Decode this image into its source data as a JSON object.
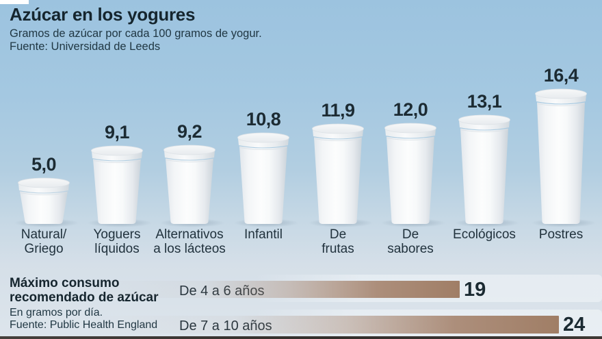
{
  "header": {
    "title": "Azúcar en los yogures",
    "subtitle": "Gramos de azúcar por cada 100 gramos de yogur.",
    "source": "Fuente: Universidad de Leeds"
  },
  "max_consumption": {
    "heading": "Máximo consumo\nrecomendado de azúcar",
    "note": "En gramos por día.",
    "source": "Fuente: Public Health England"
  },
  "colors": {
    "background_top": "#9cc3df",
    "background_bottom": "#dde5ec",
    "bar_brown": "#a6846e",
    "text_dark": "#1b2b33",
    "cup_white": "#f7f9fa"
  },
  "chart_data": [
    {
      "type": "bar",
      "style": "3d-yogurt-cups",
      "title": "Azúcar en los yogures",
      "subtitle": "Gramos de azúcar por cada 100 gramos de yogur.",
      "source": "Universidad de Leeds",
      "unit": "g de azúcar / 100 g de yogur",
      "categories": [
        "Natural/\nGriego",
        "Yoguers\nlíquidos",
        "Alternativos\na los lácteos",
        "Infantil",
        "De\nfrutas",
        "De\nsabores",
        "Ecológicos",
        "Postres"
      ],
      "values": [
        5.0,
        9.1,
        9.2,
        10.8,
        11.9,
        12.0,
        13.1,
        16.4
      ],
      "value_labels": [
        "5,0",
        "9,1",
        "9,2",
        "10,8",
        "11,9",
        "12,0",
        "13,1",
        "16,4"
      ],
      "ylim": [
        0,
        17
      ],
      "legend": "none",
      "grid": "off"
    },
    {
      "type": "bar",
      "orientation": "horizontal",
      "title": "Máximo consumo recomendado de azúcar",
      "note": "En gramos por día.",
      "source": "Public Health England",
      "categories": [
        "De 4 a 6 años",
        "De 7 a 10 años"
      ],
      "values": [
        19,
        24
      ],
      "value_labels": [
        "19",
        "24"
      ],
      "xlim": [
        0,
        26
      ],
      "legend": "none",
      "grid": "off"
    }
  ]
}
